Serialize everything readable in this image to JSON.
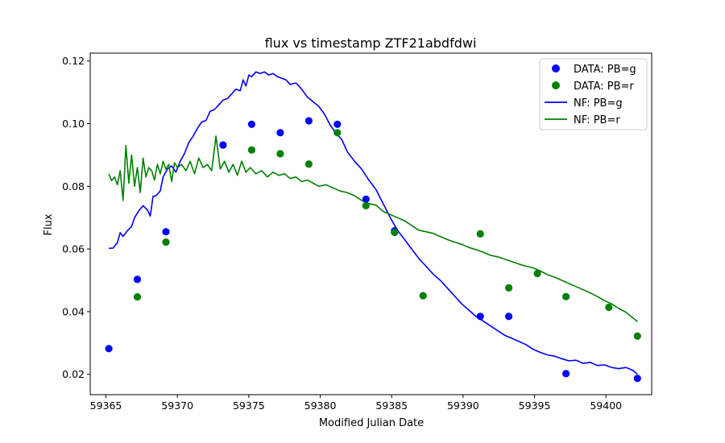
{
  "chart_data": {
    "type": "scatter",
    "title": "flux vs timestamp ZTF21abdfdwi",
    "xlabel": "Modified Julian Date",
    "ylabel": "Flux",
    "xlim": [
      59363.9,
      59403.2
    ],
    "ylim": [
      0.0135,
      0.1225
    ],
    "xticks": [
      59365,
      59370,
      59375,
      59380,
      59385,
      59390,
      59395,
      59400
    ],
    "yticks": [
      0.02,
      0.04,
      0.06,
      0.08,
      0.1,
      0.12
    ],
    "xtick_labels": [
      "59365",
      "59370",
      "59375",
      "59380",
      "59385",
      "59390",
      "59395",
      "59400"
    ],
    "ytick_labels": [
      "0.02",
      "0.04",
      "0.06",
      "0.08",
      "0.10",
      "0.12"
    ],
    "grid": false,
    "legend_position": "top-right",
    "legend": [
      "DATA: PB=g",
      "DATA: PB=r",
      "NF: PB=g",
      "NF: PB=r"
    ],
    "colors": {
      "g": "#0000ff",
      "r": "#008000"
    },
    "scatter_series": [
      {
        "name": "DATA: PB=g",
        "color": "#0000ff",
        "x": [
          59365.2,
          59367.2,
          59369.2,
          59373.2,
          59375.2,
          59377.2,
          59379.2,
          59381.2,
          59383.2,
          59385.2,
          59391.2,
          59393.2,
          59397.2,
          59402.2
        ],
        "y": [
          0.0282,
          0.0503,
          0.0655,
          0.0932,
          0.0998,
          0.0971,
          0.1009,
          0.0998,
          0.0759,
          0.0658,
          0.0385,
          0.0385,
          0.0202,
          0.0187
        ]
      },
      {
        "name": "DATA: PB=r",
        "color": "#008000",
        "x": [
          59367.2,
          59369.2,
          59375.2,
          59377.2,
          59379.2,
          59381.2,
          59383.2,
          59385.2,
          59387.2,
          59391.2,
          59393.2,
          59395.2,
          59397.2,
          59400.2,
          59402.2
        ],
        "y": [
          0.0447,
          0.0622,
          0.0916,
          0.0904,
          0.0871,
          0.0971,
          0.0738,
          0.0653,
          0.0451,
          0.0648,
          0.0476,
          0.0522,
          0.0448,
          0.0414,
          0.0322
        ]
      }
    ],
    "line_series": [
      {
        "name": "NF: PB=g",
        "color": "#0000ff",
        "x": [
          59365.2,
          59365.5,
          59365.8,
          59366.0,
          59366.2,
          59366.5,
          59366.8,
          59367.0,
          59367.3,
          59367.6,
          59367.9,
          59368.1,
          59368.3,
          59368.5,
          59368.8,
          59369.0,
          59369.3,
          59369.6,
          59369.9,
          59370.2,
          59370.5,
          59370.8,
          59371.1,
          59371.4,
          59371.7,
          59372.0,
          59372.3,
          59372.6,
          59372.9,
          59373.2,
          59373.5,
          59373.8,
          59374.1,
          59374.4,
          59374.6,
          59374.8,
          59375.0,
          59375.2,
          59375.5,
          59375.8,
          59376.1,
          59376.4,
          59376.7,
          59377.0,
          59377.3,
          59377.6,
          59377.9,
          59378.3,
          59378.7,
          59379.1,
          59379.5,
          59379.9,
          59380.3,
          59380.7,
          59381.1,
          59381.5,
          59381.9,
          59382.4,
          59382.9,
          59383.4,
          59383.9,
          59384.4,
          59384.9,
          59385.4,
          59385.9,
          59386.4,
          59386.9,
          59387.4,
          59387.9,
          59388.4,
          59388.9,
          59389.4,
          59389.9,
          59390.4,
          59390.9,
          59391.4,
          59391.9,
          59392.4,
          59392.9,
          59393.4,
          59393.9,
          59394.4,
          59394.9,
          59395.4,
          59395.9,
          59396.4,
          59396.9,
          59397.4,
          59397.9,
          59398.4,
          59398.9,
          59399.4,
          59399.9,
          59400.4,
          59400.9,
          59401.4,
          59401.9,
          59402.2
        ],
        "y": [
          0.0602,
          0.0603,
          0.062,
          0.0652,
          0.064,
          0.0658,
          0.0672,
          0.07,
          0.0722,
          0.0738,
          0.0725,
          0.0705,
          0.0768,
          0.077,
          0.0785,
          0.083,
          0.0855,
          0.0865,
          0.0845,
          0.088,
          0.0905,
          0.094,
          0.096,
          0.0985,
          0.1005,
          0.101,
          0.104,
          0.1045,
          0.106,
          0.1075,
          0.108,
          0.1095,
          0.111,
          0.1105,
          0.114,
          0.112,
          0.1155,
          0.115,
          0.1165,
          0.116,
          0.1165,
          0.1155,
          0.116,
          0.115,
          0.1145,
          0.114,
          0.1125,
          0.113,
          0.111,
          0.1085,
          0.107,
          0.1055,
          0.103,
          0.0995,
          0.097,
          0.095,
          0.091,
          0.088,
          0.0855,
          0.082,
          0.079,
          0.0745,
          0.07,
          0.066,
          0.063,
          0.06,
          0.057,
          0.0545,
          0.052,
          0.05,
          0.0475,
          0.045,
          0.0425,
          0.0405,
          0.0385,
          0.037,
          0.0355,
          0.034,
          0.0325,
          0.0315,
          0.0305,
          0.0295,
          0.028,
          0.027,
          0.0262,
          0.0258,
          0.025,
          0.0243,
          0.0245,
          0.0235,
          0.0238,
          0.0228,
          0.023,
          0.0222,
          0.0218,
          0.0222,
          0.0212,
          0.02
        ]
      },
      {
        "name": "NF: PB=r",
        "color": "#008000",
        "x": [
          59365.2,
          59365.4,
          59365.6,
          59365.8,
          59366.0,
          59366.2,
          59366.4,
          59366.6,
          59366.8,
          59367.0,
          59367.2,
          59367.4,
          59367.6,
          59367.8,
          59368.0,
          59368.2,
          59368.4,
          59368.6,
          59368.8,
          59369.0,
          59369.2,
          59369.4,
          59369.6,
          59369.8,
          59370.0,
          59370.3,
          59370.6,
          59370.9,
          59371.2,
          59371.5,
          59371.8,
          59372.1,
          59372.4,
          59372.7,
          59373.0,
          59373.3,
          59373.6,
          59373.9,
          59374.2,
          59374.5,
          59374.8,
          59375.1,
          59375.5,
          59375.9,
          59376.3,
          59376.7,
          59377.1,
          59377.5,
          59377.9,
          59378.3,
          59378.7,
          59379.1,
          59379.5,
          59379.9,
          59380.4,
          59380.9,
          59381.4,
          59381.9,
          59382.4,
          59382.9,
          59383.4,
          59383.9,
          59384.4,
          59384.9,
          59385.4,
          59385.9,
          59386.4,
          59386.9,
          59387.4,
          59387.9,
          59388.4,
          59388.9,
          59389.4,
          59389.9,
          59390.4,
          59390.9,
          59391.4,
          59391.9,
          59392.4,
          59392.9,
          59393.4,
          59393.9,
          59394.4,
          59394.9,
          59395.4,
          59395.9,
          59396.4,
          59396.9,
          59397.4,
          59397.9,
          59398.4,
          59398.9,
          59399.4,
          59399.9,
          59400.4,
          59400.9,
          59401.4,
          59401.9,
          59402.2
        ],
        "y": [
          0.084,
          0.0818,
          0.083,
          0.0805,
          0.085,
          0.0755,
          0.093,
          0.081,
          0.09,
          0.08,
          0.086,
          0.078,
          0.089,
          0.083,
          0.086,
          0.085,
          0.082,
          0.087,
          0.084,
          0.088,
          0.0855,
          0.087,
          0.0815,
          0.0875,
          0.086,
          0.087,
          0.085,
          0.088,
          0.084,
          0.089,
          0.086,
          0.087,
          0.085,
          0.096,
          0.0855,
          0.088,
          0.0845,
          0.087,
          0.0835,
          0.088,
          0.0845,
          0.086,
          0.084,
          0.085,
          0.083,
          0.0845,
          0.0835,
          0.084,
          0.0825,
          0.083,
          0.0815,
          0.082,
          0.081,
          0.08,
          0.0805,
          0.0795,
          0.0785,
          0.078,
          0.077,
          0.0755,
          0.0745,
          0.074,
          0.072,
          0.071,
          0.07,
          0.069,
          0.0675,
          0.066,
          0.0655,
          0.065,
          0.064,
          0.063,
          0.0622,
          0.0615,
          0.0605,
          0.0598,
          0.059,
          0.058,
          0.0575,
          0.0568,
          0.056,
          0.0552,
          0.0545,
          0.054,
          0.053,
          0.0518,
          0.051,
          0.05,
          0.049,
          0.048,
          0.047,
          0.046,
          0.0448,
          0.0435,
          0.0425,
          0.041,
          0.0398,
          0.038,
          0.0368
        ]
      }
    ]
  }
}
